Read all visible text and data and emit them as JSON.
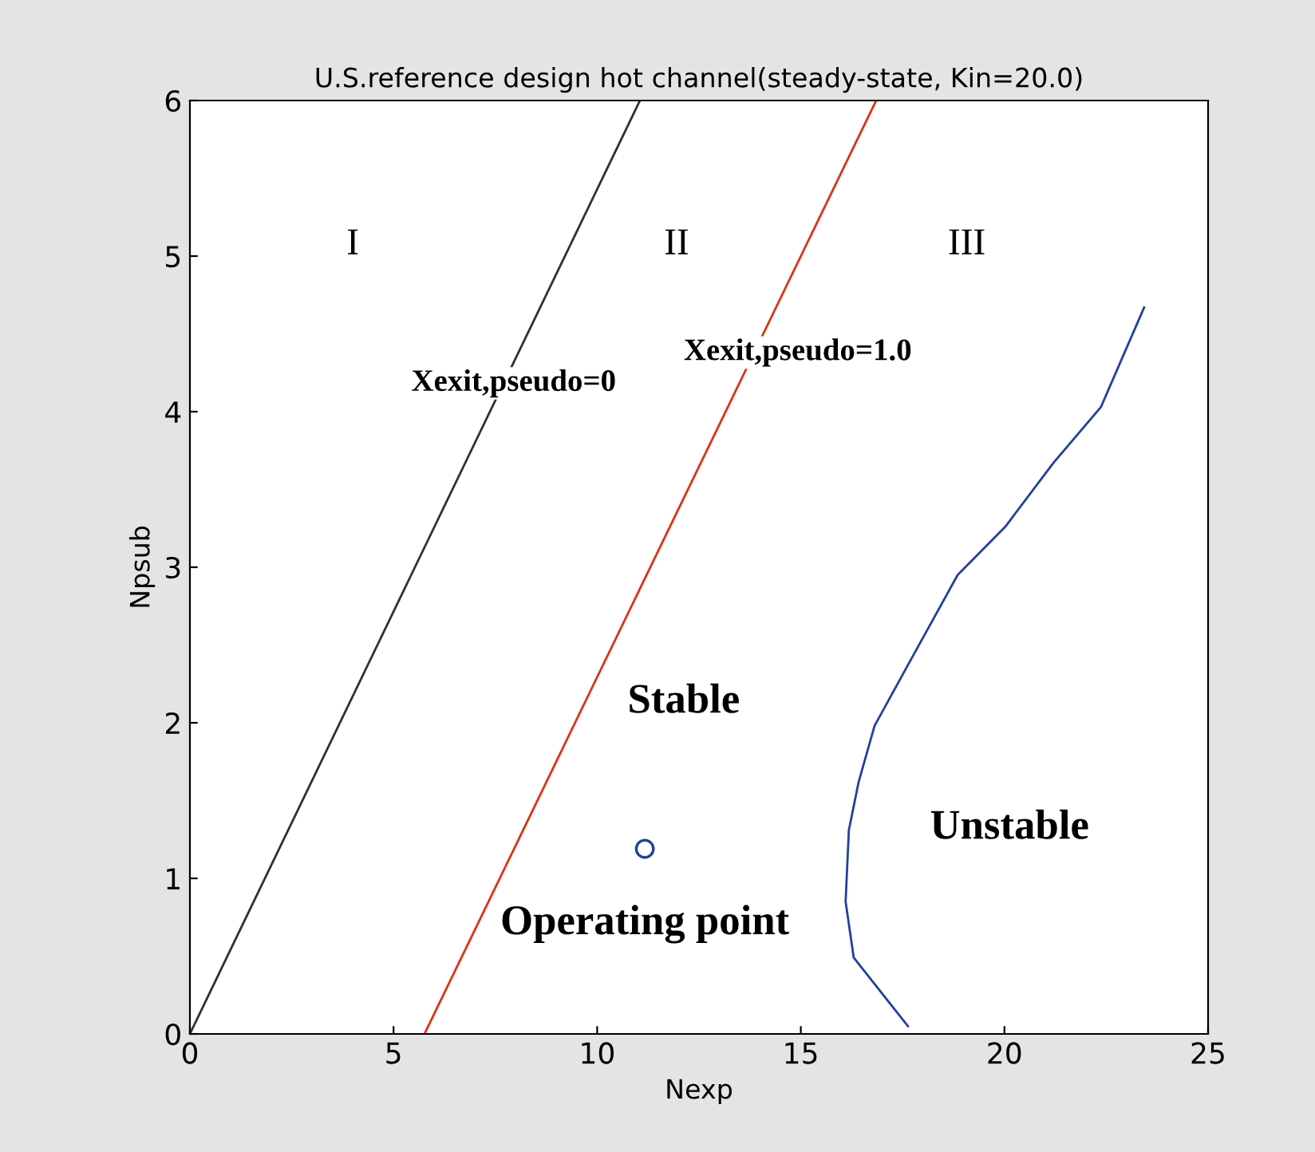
{
  "chart_data": {
    "type": "line",
    "title": "U.S.reference design hot channel(steady-state, Kin=20.0)",
    "xlabel": "Nexp",
    "ylabel": "Npsub",
    "series": [
      {
        "color": "#303030",
        "x": [
          0,
          11.05
        ],
        "values": [
          0,
          6
        ]
      },
      {
        "color": "#e03010",
        "x": [
          5.76,
          16.85
        ],
        "values": [
          0,
          6
        ]
      },
      {
        "color": "#2040a0",
        "x": [
          17.63,
          16.3,
          16.1,
          16.18,
          16.42,
          16.81,
          17.67,
          18.85,
          20.02,
          21.2,
          22.37,
          23.43
        ],
        "values": [
          0.05,
          0.49,
          0.85,
          1.31,
          1.62,
          1.98,
          2.39,
          2.95,
          3.26,
          3.67,
          4.03,
          4.67
        ]
      },
      {
        "type": "scatter",
        "marker": "circle",
        "color": "#2040a0",
        "x": [
          11.17
        ],
        "values": [
          1.19
        ]
      }
    ],
    "annotations": [
      "I",
      "II",
      "III",
      "Xexit,pseudo=0",
      "Xexit,pseudo=1.0",
      "Stable",
      "Unstable",
      {
        "text": "Operating point",
        "x": 11.17,
        "y": 1.19
      }
    ],
    "xlim": [
      0,
      25
    ],
    "ylim": [
      0,
      6
    ],
    "xticks": [
      0,
      5,
      10,
      15,
      20,
      25
    ],
    "yticks": [
      0,
      1,
      2,
      3,
      4,
      5,
      6
    ],
    "grid": false,
    "legend": false
  }
}
